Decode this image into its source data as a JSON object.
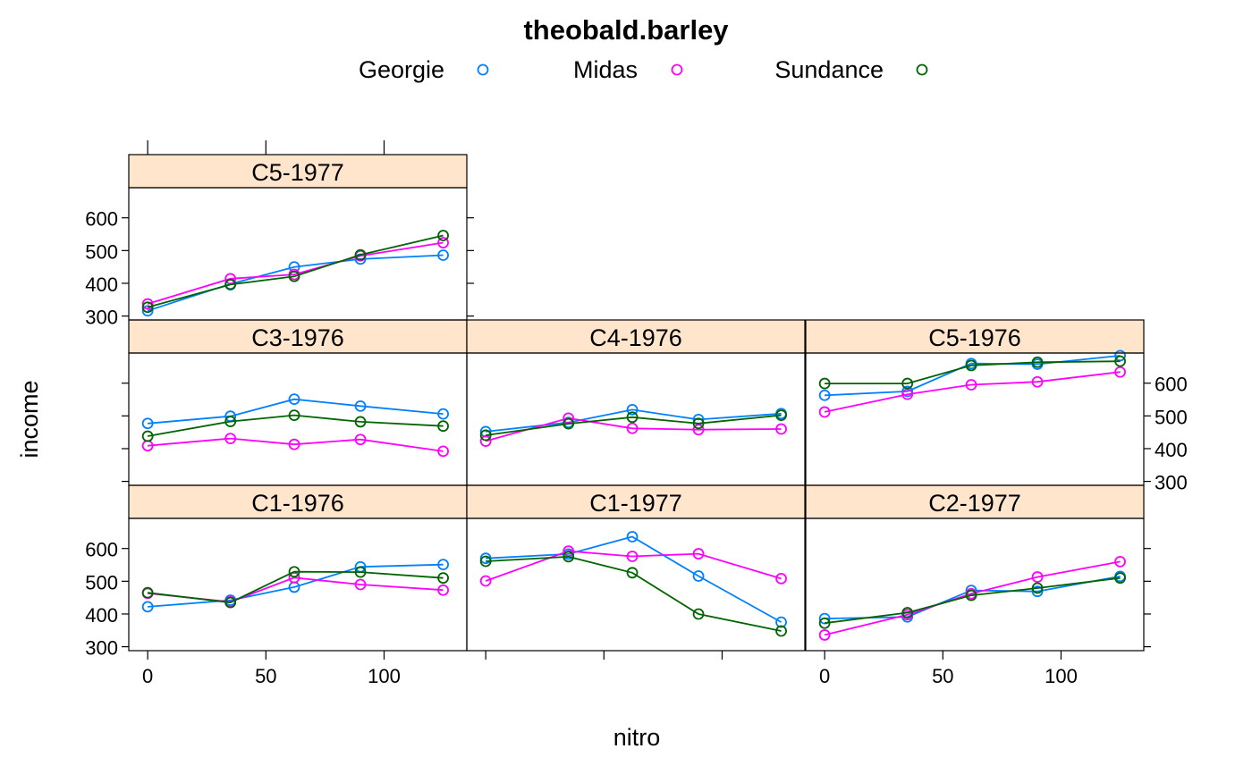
{
  "chart_data": {
    "type": "line",
    "title": "theobald.barley",
    "xlabel": "nitro",
    "ylabel": "income",
    "xlim": [
      -8,
      135
    ],
    "ylim": [
      288,
      692
    ],
    "x_ticks": [
      "0",
      "50",
      "100"
    ],
    "y_ticks": [
      "300",
      "400",
      "500",
      "600"
    ],
    "x": [
      0,
      35,
      62,
      90,
      125
    ],
    "legend": {
      "placement": "top",
      "entries": [
        {
          "name": "Georgie",
          "color": "#0080ff"
        },
        {
          "name": "Midas",
          "color": "#ff00ff"
        },
        {
          "name": "Sundance",
          "color": "#006400"
        }
      ]
    },
    "strip_color": "#ffe5cc",
    "panels": [
      {
        "label": "C1-1976",
        "row": 0,
        "col": 0,
        "series": [
          {
            "name": "Georgie",
            "values": [
              422,
              442,
              482,
              544,
              551
            ]
          },
          {
            "name": "Midas",
            "values": [
              463,
              437,
              511,
              490,
              473
            ]
          },
          {
            "name": "Sundance",
            "values": [
              465,
              435,
              529,
              528,
              510
            ]
          }
        ]
      },
      {
        "label": "C1-1977",
        "row": 0,
        "col": 1,
        "series": [
          {
            "name": "Georgie",
            "values": [
              570,
              583,
              636,
              516,
              375
            ]
          },
          {
            "name": "Midas",
            "values": [
              501,
              592,
              576,
              584,
              508
            ]
          },
          {
            "name": "Sundance",
            "values": [
              561,
              575,
              526,
              400,
              348
            ]
          }
        ]
      },
      {
        "label": "C2-1977",
        "row": 0,
        "col": 2,
        "series": [
          {
            "name": "Georgie",
            "values": [
              386,
              391,
              472,
              469,
              515
            ]
          },
          {
            "name": "Midas",
            "values": [
              336,
              398,
              462,
              513,
              560
            ]
          },
          {
            "name": "Sundance",
            "values": [
              372,
              404,
              457,
              479,
              510
            ]
          }
        ]
      },
      {
        "label": "C3-1976",
        "row": 1,
        "col": 0,
        "series": [
          {
            "name": "Georgie",
            "values": [
              477,
              499,
              551,
              530,
              506
            ]
          },
          {
            "name": "Midas",
            "values": [
              409,
              431,
              413,
              428,
              392
            ]
          },
          {
            "name": "Sundance",
            "values": [
              438,
              483,
              502,
              482,
              469
            ]
          }
        ]
      },
      {
        "label": "C4-1976",
        "row": 1,
        "col": 1,
        "series": [
          {
            "name": "Georgie",
            "values": [
              452,
              480,
              519,
              489,
              507
            ]
          },
          {
            "name": "Midas",
            "values": [
              423,
              493,
              462,
              458,
              460
            ]
          },
          {
            "name": "Sundance",
            "values": [
              441,
              476,
              496,
              477,
              502
            ]
          }
        ]
      },
      {
        "label": "C5-1976",
        "row": 1,
        "col": 2,
        "series": [
          {
            "name": "Georgie",
            "values": [
              563,
              575,
              660,
              658,
              684
            ]
          },
          {
            "name": "Midas",
            "values": [
              512,
              566,
              595,
              604,
              634
            ]
          },
          {
            "name": "Sundance",
            "values": [
              599,
              599,
              654,
              664,
              667
            ]
          }
        ]
      },
      {
        "label": "C5-1977",
        "row": 2,
        "col": 0,
        "series": [
          {
            "name": "Georgie",
            "values": [
              316,
              398,
              450,
              474,
              486
            ]
          },
          {
            "name": "Midas",
            "values": [
              337,
              414,
              427,
              484,
              524
            ]
          },
          {
            "name": "Sundance",
            "values": [
              327,
              396,
              421,
              487,
              546
            ]
          }
        ]
      }
    ]
  }
}
